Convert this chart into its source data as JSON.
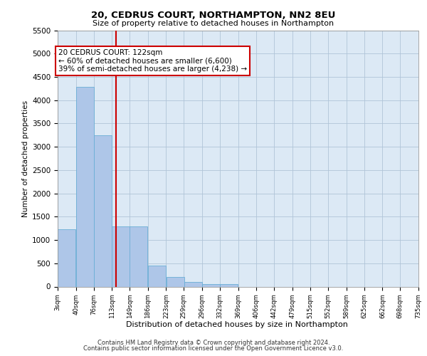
{
  "title": "20, CEDRUS COURT, NORTHAMPTON, NN2 8EU",
  "subtitle": "Size of property relative to detached houses in Northampton",
  "xlabel": "Distribution of detached houses by size in Northampton",
  "ylabel": "Number of detached properties",
  "footer1": "Contains HM Land Registry data © Crown copyright and database right 2024.",
  "footer2": "Contains public sector information licensed under the Open Government Licence v3.0.",
  "annotation_title": "20 CEDRUS COURT: 122sqm",
  "annotation_line1": "← 60% of detached houses are smaller (6,600)",
  "annotation_line2": "39% of semi-detached houses are larger (4,238) →",
  "property_size": 122,
  "bins": [
    3,
    40,
    76,
    113,
    149,
    186,
    223,
    259,
    296,
    332,
    369,
    406,
    442,
    479,
    515,
    552,
    589,
    625,
    662,
    698,
    735
  ],
  "values": [
    1230,
    4280,
    3250,
    1290,
    1290,
    450,
    200,
    100,
    60,
    50,
    0,
    0,
    0,
    0,
    0,
    0,
    0,
    0,
    0,
    0
  ],
  "bar_color": "#aec6e8",
  "bar_edgecolor": "#6aaed6",
  "vline_color": "#cc0000",
  "annotation_box_color": "#cc0000",
  "background_color": "#dce9f5",
  "grid_color": "#b0c4d8",
  "ylim": [
    0,
    5500
  ],
  "yticks": [
    0,
    500,
    1000,
    1500,
    2000,
    2500,
    3000,
    3500,
    4000,
    4500,
    5000,
    5500
  ]
}
